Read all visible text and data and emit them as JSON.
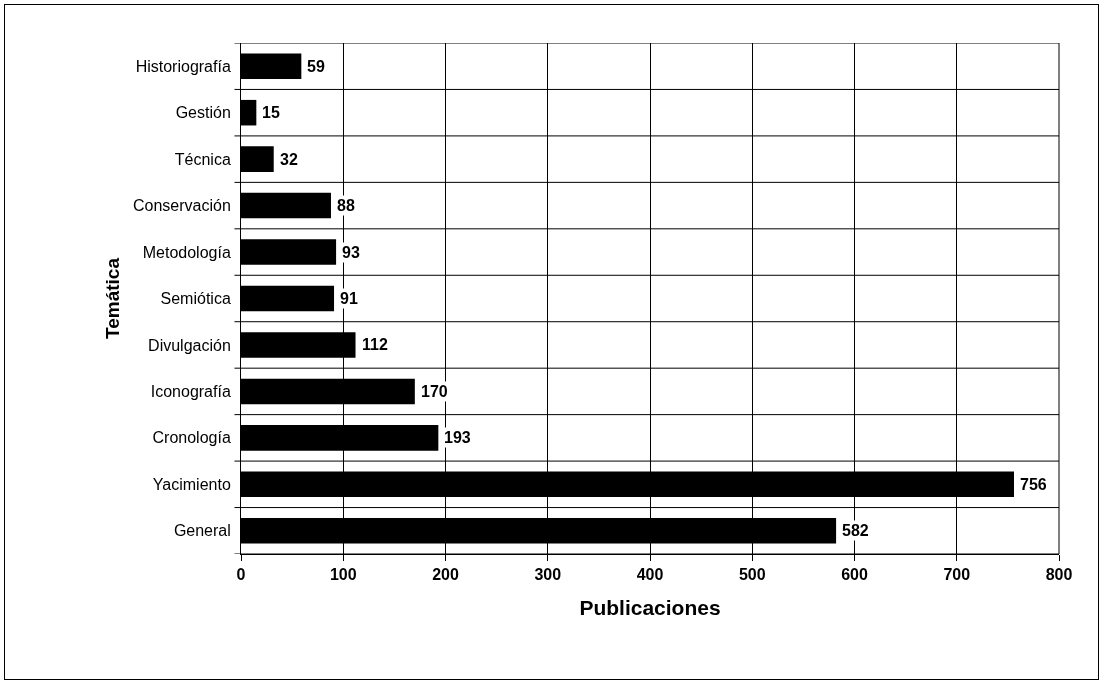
{
  "chart_data": {
    "type": "bar",
    "orientation": "horizontal",
    "xlabel": "Publicaciones",
    "ylabel": "Temática",
    "categories": [
      "Historiografía",
      "Gestión",
      "Técnica",
      "Conservación",
      "Metodología",
      "Semiótica",
      "Divulgación",
      "Iconografía",
      "Cronología",
      "Yacimiento",
      "General"
    ],
    "values": [
      59,
      15,
      32,
      88,
      93,
      91,
      112,
      170,
      193,
      756,
      582
    ],
    "color": "#000000",
    "data_labels": true,
    "grid": true,
    "xlim": [
      0,
      800
    ],
    "xticks": [
      0,
      100,
      200,
      300,
      400,
      500,
      600,
      700,
      800
    ]
  }
}
